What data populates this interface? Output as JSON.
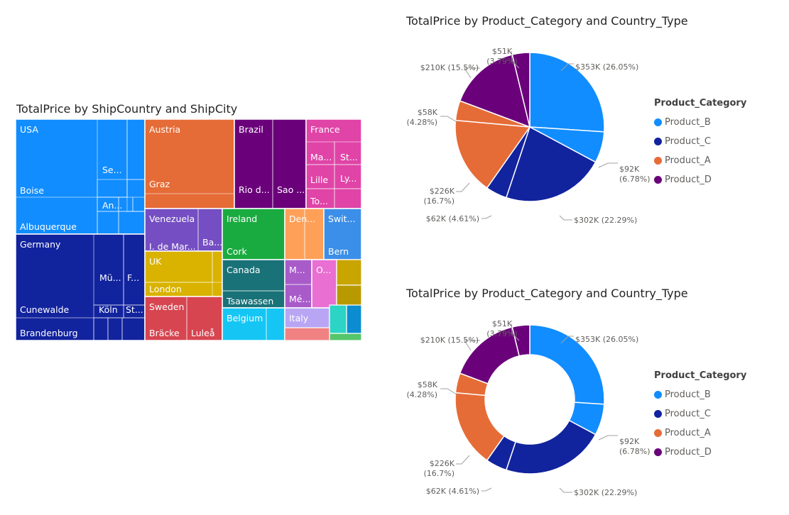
{
  "treemap": {
    "title": "TotalPrice by ShipCountry and ShipCity",
    "chart_data": {
      "type": "treemap",
      "title": "TotalPrice by ShipCountry and ShipCity",
      "nodes": [
        {
          "country": "USA",
          "color": "#118DFF",
          "cities": [
            "Boise",
            "Albuquerque",
            "Se...",
            "An..."
          ]
        },
        {
          "country": "Germany",
          "color": "#12239E",
          "cities": [
            "Cunewalde",
            "Brandenburg",
            "Mü...",
            "F...",
            "Köln",
            "St..."
          ]
        },
        {
          "country": "Austria",
          "color": "#E66C37",
          "cities": [
            "Graz"
          ]
        },
        {
          "country": "Brazil",
          "color": "#6B007B",
          "cities": [
            "Rio d...",
            "Sao ..."
          ]
        },
        {
          "country": "France",
          "color": "#E044A7",
          "cities": [
            "Ma...",
            "St...",
            "Lille",
            "Ly...",
            "To..."
          ]
        },
        {
          "country": "Venezuela",
          "color": "#744EC2",
          "cities": [
            "I. de Mar...",
            "Ba..."
          ]
        },
        {
          "country": "Ireland",
          "color": "#1AAB40",
          "cities": [
            "Cork"
          ]
        },
        {
          "country": "Den...",
          "color": "#FFA058",
          "cities": []
        },
        {
          "country": "Swit...",
          "color": "#3C8FE8",
          "cities": [
            "Bern"
          ]
        },
        {
          "country": "UK",
          "color": "#D9B300",
          "cities": [
            "London"
          ]
        },
        {
          "country": "Canada",
          "color": "#197278",
          "cities": [
            "Tsawassen"
          ]
        },
        {
          "country": "M...",
          "color": "#A85BC9",
          "cities": [
            "Mé..."
          ]
        },
        {
          "country": "O...",
          "color": "#E96FD2",
          "cities": []
        },
        {
          "country": "Sweden",
          "color": "#D64550",
          "cities": [
            "Bräcke",
            "Luleå"
          ]
        },
        {
          "country": "Belgium",
          "color": "#15C6F4",
          "cities": []
        },
        {
          "country": "Italy",
          "color": "#B8A6F5",
          "cities": []
        }
      ]
    }
  },
  "pie_chart": {
    "title": "TotalPrice by Product_Category and Country_Type",
    "chart_data": {
      "type": "pie",
      "title": "TotalPrice by Product_Category and Country_Type",
      "slices": [
        {
          "category": "Product_B",
          "label": "$353K (26.05%)",
          "value": 26.05,
          "color": "#118DFF"
        },
        {
          "category": "Product_B",
          "label": "$92K (6.78%)",
          "value": 6.78,
          "color": "#118DFF"
        },
        {
          "category": "Product_C",
          "label": "$302K (22.29%)",
          "value": 22.29,
          "color": "#12239E"
        },
        {
          "category": "Product_C",
          "label": "$62K (4.61%)",
          "value": 4.61,
          "color": "#12239E"
        },
        {
          "category": "Product_A",
          "label": "$226K (16.7%)",
          "value": 16.7,
          "color": "#E66C37"
        },
        {
          "category": "Product_A",
          "label": "$58K (4.28%)",
          "value": 4.28,
          "color": "#E66C37"
        },
        {
          "category": "Product_D",
          "label": "$210K (15.5%)",
          "value": 15.5,
          "color": "#6B007B"
        },
        {
          "category": "Product_D",
          "label": "$51K (3.79%)",
          "value": 3.79,
          "color": "#6B007B"
        }
      ]
    }
  },
  "donut_chart": {
    "title": "TotalPrice by Product_Category and Country_Type",
    "chart_data": {
      "type": "donut",
      "title": "TotalPrice by Product_Category and Country_Type",
      "slices": [
        {
          "category": "Product_B",
          "label": "$353K (26.05%)",
          "value": 26.05,
          "color": "#118DFF"
        },
        {
          "category": "Product_B",
          "label": "$92K (6.78%)",
          "value": 6.78,
          "color": "#118DFF"
        },
        {
          "category": "Product_C",
          "label": "$302K (22.29%)",
          "value": 22.29,
          "color": "#12239E"
        },
        {
          "category": "Product_C",
          "label": "$62K (4.61%)",
          "value": 4.61,
          "color": "#12239E"
        },
        {
          "category": "Product_A",
          "label": "$226K (16.7%)",
          "value": 16.7,
          "color": "#E66C37"
        },
        {
          "category": "Product_A",
          "label": "$58K (4.28%)",
          "value": 4.28,
          "color": "#E66C37"
        },
        {
          "category": "Product_D",
          "label": "$210K (15.5%)",
          "value": 15.5,
          "color": "#6B007B"
        },
        {
          "category": "Product_D",
          "label": "$51K (3.79%)",
          "value": 3.79,
          "color": "#6B007B"
        }
      ]
    }
  },
  "legend": {
    "title": "Product_Category",
    "items": [
      {
        "label": "Product_B",
        "color": "#118DFF"
      },
      {
        "label": "Product_C",
        "color": "#12239E"
      },
      {
        "label": "Product_A",
        "color": "#E66C37"
      },
      {
        "label": "Product_D",
        "color": "#6B007B"
      }
    ]
  }
}
